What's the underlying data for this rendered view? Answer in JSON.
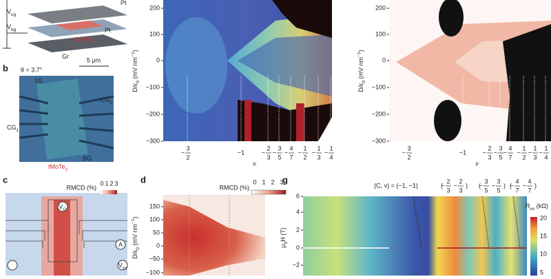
{
  "panel_a": {
    "labels": [
      [
        {
          "t": "V"
        },
        {
          "t": "cg",
          "s": "sub"
        }
      ],
      [
        {
          "t": "V"
        },
        {
          "t": "bg",
          "s": "sub"
        }
      ],
      [
        {
          "t": "Pt"
        }
      ],
      [
        {
          "t": "tMoTe"
        },
        {
          "t": "2",
          "s": "sub"
        }
      ],
      [
        {
          "t": "Pt"
        }
      ],
      [
        {
          "t": "Gr"
        }
      ]
    ]
  },
  "panel_b": {
    "letter": "b",
    "angle": "θ = 3.7°",
    "scale": "5 μm",
    "labels": [
      [
        {
          "t": "1G"
        }
      ],
      [
        {
          "t": "CG"
        },
        {
          "t": "2",
          "s": "sub"
        }
      ],
      [
        {
          "t": "CG"
        },
        {
          "t": "1",
          "s": "sub"
        }
      ],
      [
        {
          "t": "BG"
        }
      ],
      [
        {
          "t": "tMoTe"
        },
        {
          "t": "2",
          "s": "sub"
        }
      ]
    ]
  },
  "panel_top_middle": {
    "y_label": [
      {
        "t": "D/ε"
      },
      {
        "t": "0",
        "s": "sub"
      },
      {
        "t": " (mV nm"
      },
      {
        "t": "−1",
        "s": "sup"
      },
      {
        "t": ")"
      }
    ],
    "y_ticks": [
      "200",
      "100",
      "0",
      "−100",
      "−200",
      "−300"
    ],
    "x_label": "ν",
    "x_ticks": [
      {
        "sign": "−",
        "num": "3",
        "den": "2"
      },
      {
        "t": "−1"
      },
      {
        "sign": "−",
        "num": "2",
        "den": "3"
      },
      {
        "sign": "−",
        "num": "3",
        "den": "5"
      },
      {
        "sign": "−",
        "num": "4",
        "den": "7"
      },
      {
        "sign": "−",
        "num": "1",
        "den": "2"
      },
      {
        "sign": "−",
        "num": "1",
        "den": "3"
      },
      {
        "sign": "−",
        "num": "1",
        "den": "4"
      }
    ]
  },
  "panel_top_right": {
    "y_label": [
      {
        "t": "D/ε"
      },
      {
        "t": "0",
        "s": "sub"
      },
      {
        "t": " (mV nm"
      },
      {
        "t": "−1",
        "s": "sup"
      },
      {
        "t": ")"
      }
    ],
    "y_ticks": [
      "200",
      "100",
      "0",
      "−100",
      "−200",
      "−300"
    ],
    "x_label": "ν",
    "x_ticks": [
      {
        "sign": "−",
        "num": "3",
        "den": "2"
      },
      {
        "t": "−1"
      },
      {
        "sign": "−",
        "num": "2",
        "den": "3"
      },
      {
        "sign": "−",
        "num": "3",
        "den": "5"
      },
      {
        "sign": "−",
        "num": "4",
        "den": "7"
      },
      {
        "sign": "−",
        "num": "1",
        "den": "2"
      },
      {
        "sign": "−",
        "num": "1",
        "den": "3"
      },
      {
        "sign": "−",
        "num": "1",
        "den": "4"
      }
    ]
  },
  "panel_c": {
    "letter": "c",
    "colorbar_label": "RMCD (%)",
    "colorbar_ticks": [
      "0",
      "1",
      "2",
      "3"
    ],
    "labels": [
      [
        {
          "t": "V"
        },
        {
          "t": "G",
          "s": "sub"
        }
      ],
      [
        {
          "t": "A"
        }
      ],
      [
        {
          "t": "V"
        },
        {
          "t": "xx",
          "s": "sub"
        }
      ]
    ]
  },
  "panel_d": {
    "letter": "d",
    "colorbar_label": "RMCD (%)",
    "colorbar_ticks": [
      "0",
      "1",
      "2",
      "3"
    ],
    "y_label": [
      {
        "t": "D/ε"
      },
      {
        "t": "0",
        "s": "sub"
      },
      {
        "t": " (mV nm"
      },
      {
        "t": "−1",
        "s": "sup"
      },
      {
        "t": ")"
      }
    ],
    "y_ticks": [
      "150",
      "100",
      "50",
      "0",
      "−50",
      "−100"
    ]
  },
  "panel_g": {
    "letter": "g",
    "annotation": "(C, ν) = (−1, −1)",
    "fraction_annotations": [
      {
        "sign": "−",
        "num": "2",
        "den": "3"
      },
      {
        "sign": "−",
        "num": "3",
        "den": "5"
      },
      {
        "sign": "−",
        "num": "4",
        "den": "7"
      }
    ],
    "y_label": [
      {
        "t": "μ"
      },
      {
        "t": "0",
        "s": "sub"
      },
      {
        "t": "H (T)"
      }
    ],
    "y_ticks": [
      "6",
      "4",
      "2",
      "0",
      "−2"
    ],
    "colorbar_label": [
      {
        "t": "R"
      },
      {
        "t": "xx",
        "s": "sub"
      },
      {
        "t": " (kΩ)"
      }
    ],
    "colorbar_ticks": [
      "20",
      "15",
      "10",
      "5"
    ]
  }
}
